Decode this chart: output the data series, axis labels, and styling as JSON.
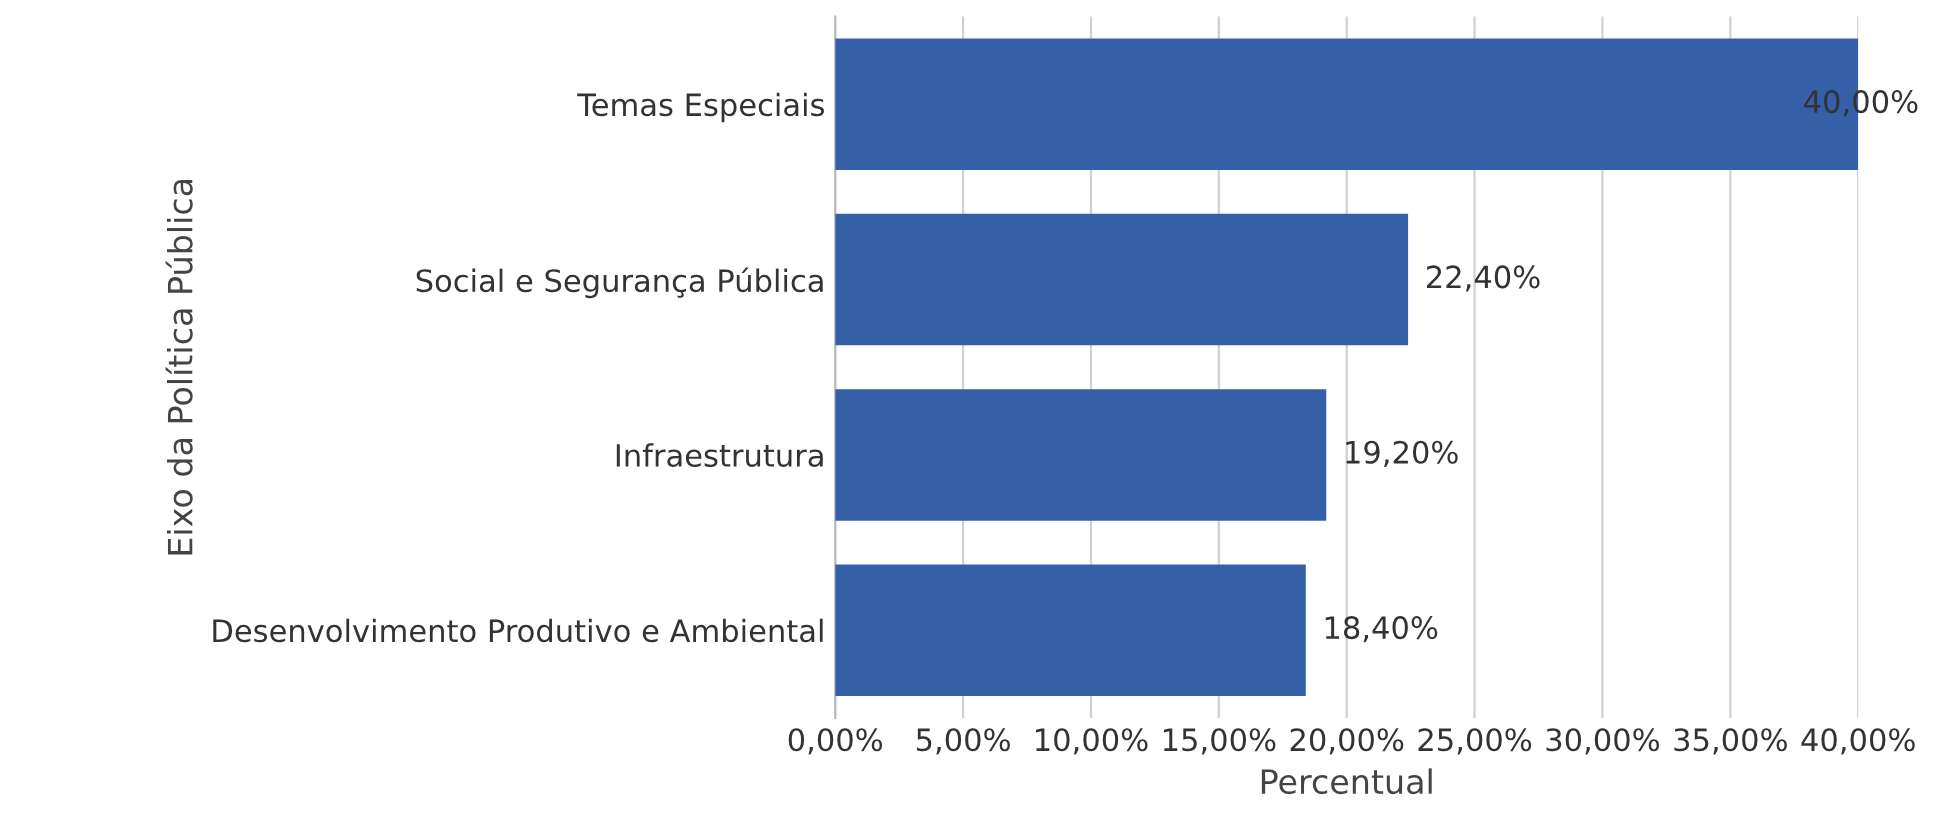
{
  "chart_data": {
    "type": "bar",
    "orientation": "horizontal",
    "xlabel": "Percentual",
    "ylabel": "Eixo da Política Pública",
    "categories": [
      "Temas Especiais",
      "Social e Segurança Pública",
      "Infraestrutura",
      "Desenvolvimento Produtivo e Ambiental"
    ],
    "values": [
      40,
      22.4,
      19.2,
      18.4
    ],
    "color": "#3560a8",
    "value_labels": [
      "40,00%",
      "22,40%",
      "19,20%",
      "18,40%"
    ],
    "xlim": [
      0,
      40
    ],
    "xticks": [
      {
        "value": 0,
        "label": "0,00%"
      },
      {
        "value": 5,
        "label": "5,00%"
      },
      {
        "value": 10,
        "label": "10,00%"
      },
      {
        "value": 15,
        "label": "15,00%"
      },
      {
        "value": 20,
        "label": "20,00%"
      },
      {
        "value": 25,
        "label": "25,00%"
      },
      {
        "value": 30,
        "label": "30,00%"
      },
      {
        "value": 35,
        "label": "35,00%"
      },
      {
        "value": 40,
        "label": "40,00%"
      }
    ],
    "grid": "x",
    "legend": false
  }
}
